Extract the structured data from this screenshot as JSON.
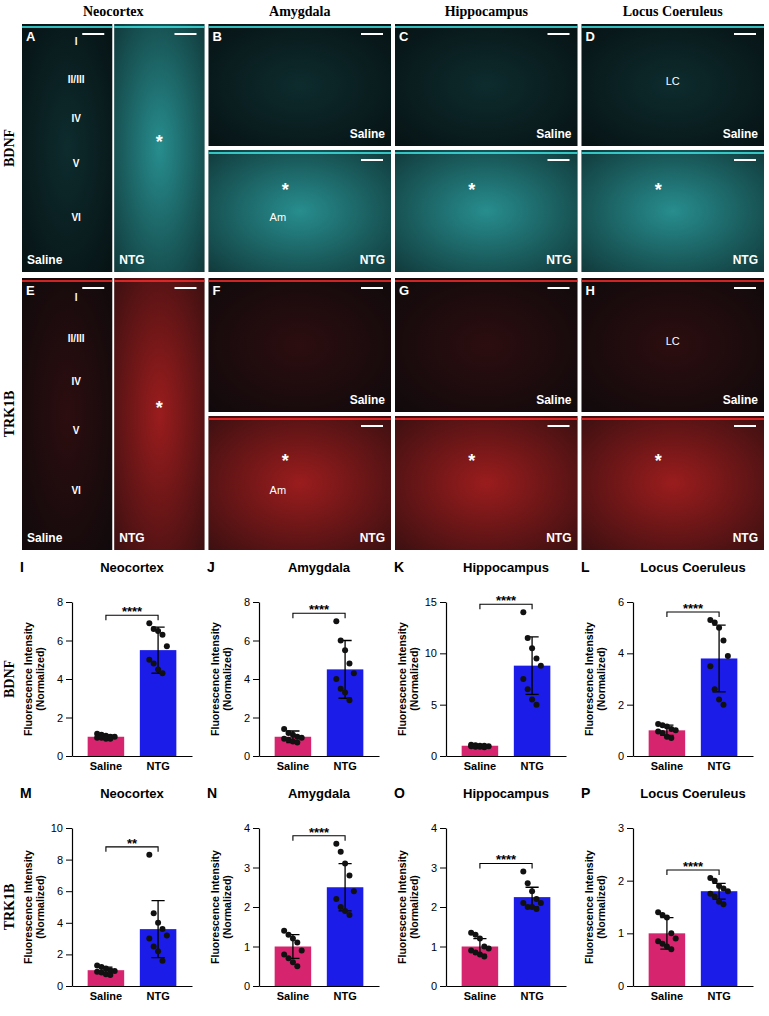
{
  "figure": {
    "column_titles": [
      "Neocortex",
      "Amygdala",
      "Hippocampus",
      "Locus Coeruleus"
    ],
    "row_labels": [
      "BDNF",
      "TRK1B"
    ],
    "image_panels": [
      {
        "label": "A",
        "layers": [
          "I",
          "II/III",
          "IV",
          "V",
          "VI"
        ],
        "subpanels": [
          {
            "condition": "Saline"
          },
          {
            "condition": "NTG",
            "asterisk": "*"
          }
        ]
      },
      {
        "label": "B",
        "subpanels": [
          {
            "condition": "Saline"
          },
          {
            "condition": "NTG",
            "asterisk": "*",
            "region": "Am"
          }
        ]
      },
      {
        "label": "C",
        "subpanels": [
          {
            "condition": "Saline"
          },
          {
            "condition": "NTG",
            "asterisk": "*"
          }
        ]
      },
      {
        "label": "D",
        "subpanels": [
          {
            "condition": "Saline",
            "region": "LC"
          },
          {
            "condition": "NTG",
            "asterisk": "*"
          }
        ]
      },
      {
        "label": "E",
        "layers": [
          "I",
          "II/III",
          "IV",
          "V",
          "VI"
        ],
        "subpanels": [
          {
            "condition": "Saline"
          },
          {
            "condition": "NTG",
            "asterisk": "*"
          }
        ]
      },
      {
        "label": "F",
        "subpanels": [
          {
            "condition": "Saline"
          },
          {
            "condition": "NTG",
            "asterisk": "*",
            "region": "Am"
          }
        ]
      },
      {
        "label": "G",
        "subpanels": [
          {
            "condition": "Saline"
          },
          {
            "condition": "NTG",
            "asterisk": "*"
          }
        ]
      },
      {
        "label": "H",
        "subpanels": [
          {
            "condition": "Saline",
            "region": "LC"
          },
          {
            "condition": "NTG",
            "asterisk": "*"
          }
        ]
      }
    ]
  },
  "chart_data": [
    {
      "type": "bar",
      "panel_label": "I",
      "title": "Neocortex",
      "ylabel": "Fluorescence Intensity (Normalized)",
      "categories": [
        "Saline",
        "NTG"
      ],
      "values": [
        1.0,
        5.5
      ],
      "error": [
        0.1,
        1.2
      ],
      "points": [
        [
          1.15,
          1.1,
          1.05,
          1.0,
          1.0,
          0.95,
          0.95,
          0.9,
          0.9
        ],
        [
          6.9,
          6.6,
          6.5,
          6.3,
          5.7,
          5.0,
          4.8,
          4.5,
          4.3
        ]
      ],
      "colors": [
        "#d6246e",
        "#1c1ce8"
      ],
      "ylim": [
        0,
        8
      ],
      "yticks": [
        0,
        2,
        4,
        6,
        8
      ],
      "significance": "****"
    },
    {
      "type": "bar",
      "panel_label": "J",
      "title": "Amygdala",
      "ylabel": "Fluorescence Intensity (Normalized)",
      "categories": [
        "Saline",
        "NTG"
      ],
      "values": [
        1.0,
        4.5
      ],
      "error": [
        0.3,
        1.5
      ],
      "points": [
        [
          1.4,
          1.2,
          1.1,
          1.0,
          0.95,
          0.9,
          0.85,
          0.75,
          0.7
        ],
        [
          7.0,
          6.0,
          5.5,
          4.8,
          4.3,
          4.0,
          3.5,
          3.3,
          2.9
        ]
      ],
      "colors": [
        "#d6246e",
        "#1c1ce8"
      ],
      "ylim": [
        0,
        8
      ],
      "yticks": [
        0,
        2,
        4,
        6,
        8
      ],
      "significance": "****"
    },
    {
      "type": "bar",
      "panel_label": "K",
      "title": "Hippocampus",
      "ylabel": "Fluorescence Intensity (Normalized)",
      "categories": [
        "Saline",
        "NTG"
      ],
      "values": [
        1.0,
        8.8
      ],
      "error": [
        0.1,
        2.8
      ],
      "points": [
        [
          1.1,
          1.05,
          1.0,
          1.0,
          0.95,
          0.95,
          0.9,
          0.9,
          0.85
        ],
        [
          14.0,
          11.5,
          10.5,
          9.5,
          8.8,
          7.5,
          6.5,
          5.5,
          5.0
        ]
      ],
      "colors": [
        "#d6246e",
        "#1c1ce8"
      ],
      "ylim": [
        0,
        15
      ],
      "yticks": [
        0,
        5,
        10,
        15
      ],
      "significance": "****"
    },
    {
      "type": "bar",
      "panel_label": "L",
      "title": "Locus Coeruleus",
      "ylabel": "Fluorescence Intensity (Normalized)",
      "categories": [
        "Saline",
        "NTG"
      ],
      "values": [
        1.0,
        3.8
      ],
      "error": [
        0.2,
        1.3
      ],
      "points": [
        [
          1.25,
          1.2,
          1.15,
          1.05,
          1.0,
          0.95,
          0.9,
          0.75,
          0.7
        ],
        [
          5.3,
          5.2,
          5.0,
          4.5,
          3.9,
          3.5,
          2.6,
          2.2,
          2.0
        ]
      ],
      "colors": [
        "#d6246e",
        "#1c1ce8"
      ],
      "ylim": [
        0,
        6
      ],
      "yticks": [
        0,
        2,
        4,
        6
      ],
      "significance": "****"
    },
    {
      "type": "bar",
      "panel_label": "M",
      "title": "Neocortex",
      "ylabel": "Fluorescence Intensity (Normalized)",
      "categories": [
        "Saline",
        "NTG"
      ],
      "values": [
        1.0,
        3.6
      ],
      "error": [
        0.2,
        1.8
      ],
      "points": [
        [
          1.3,
          1.2,
          1.1,
          1.0,
          0.95,
          0.9,
          0.85,
          0.75,
          0.7
        ],
        [
          8.3,
          4.6,
          4.0,
          3.6,
          3.2,
          3.0,
          2.5,
          2.2,
          1.6
        ]
      ],
      "colors": [
        "#d6246e",
        "#1c1ce8"
      ],
      "ylim": [
        0,
        10
      ],
      "yticks": [
        0,
        2,
        4,
        6,
        8,
        10
      ],
      "significance": "**"
    },
    {
      "type": "bar",
      "panel_label": "N",
      "title": "Amygdala",
      "ylabel": "Fluorescence Intensity (Normalized)",
      "categories": [
        "Saline",
        "NTG"
      ],
      "values": [
        1.0,
        2.5
      ],
      "error": [
        0.3,
        0.6
      ],
      "points": [
        [
          1.4,
          1.3,
          1.2,
          1.1,
          0.9,
          0.8,
          0.7,
          0.6,
          0.5
        ],
        [
          3.6,
          3.4,
          3.1,
          2.8,
          2.4,
          2.2,
          2.0,
          1.9,
          1.8
        ]
      ],
      "colors": [
        "#d6246e",
        "#1c1ce8"
      ],
      "ylim": [
        0,
        4
      ],
      "yticks": [
        0,
        1,
        2,
        3,
        4
      ],
      "significance": "****"
    },
    {
      "type": "bar",
      "panel_label": "O",
      "title": "Hippocampus",
      "ylabel": "Fluorescence Intensity (Normalized)",
      "categories": [
        "Saline",
        "NTG"
      ],
      "values": [
        1.0,
        2.25
      ],
      "error": [
        0.2,
        0.25
      ],
      "points": [
        [
          1.35,
          1.3,
          1.2,
          1.0,
          0.95,
          0.9,
          0.85,
          0.8,
          0.75
        ],
        [
          2.9,
          2.6,
          2.4,
          2.2,
          2.1,
          2.1,
          2.0,
          2.0,
          1.95
        ]
      ],
      "colors": [
        "#d6246e",
        "#1c1ce8"
      ],
      "ylim": [
        0,
        4
      ],
      "yticks": [
        0,
        1,
        2,
        3,
        4
      ],
      "significance": "****"
    },
    {
      "type": "bar",
      "panel_label": "P",
      "title": "Locus Coeruleus",
      "ylabel": "Fluorescence Intensity (Normalized)",
      "categories": [
        "Saline",
        "NTG"
      ],
      "values": [
        1.0,
        1.8
      ],
      "error": [
        0.3,
        0.15
      ],
      "points": [
        [
          1.4,
          1.35,
          1.3,
          1.0,
          0.9,
          0.85,
          0.8,
          0.75,
          0.7
        ],
        [
          2.05,
          2.0,
          1.9,
          1.85,
          1.8,
          1.75,
          1.7,
          1.6,
          1.55
        ]
      ],
      "colors": [
        "#d6246e",
        "#1c1ce8"
      ],
      "ylim": [
        0,
        3
      ],
      "yticks": [
        0,
        1,
        2,
        3
      ],
      "significance": "****"
    }
  ]
}
